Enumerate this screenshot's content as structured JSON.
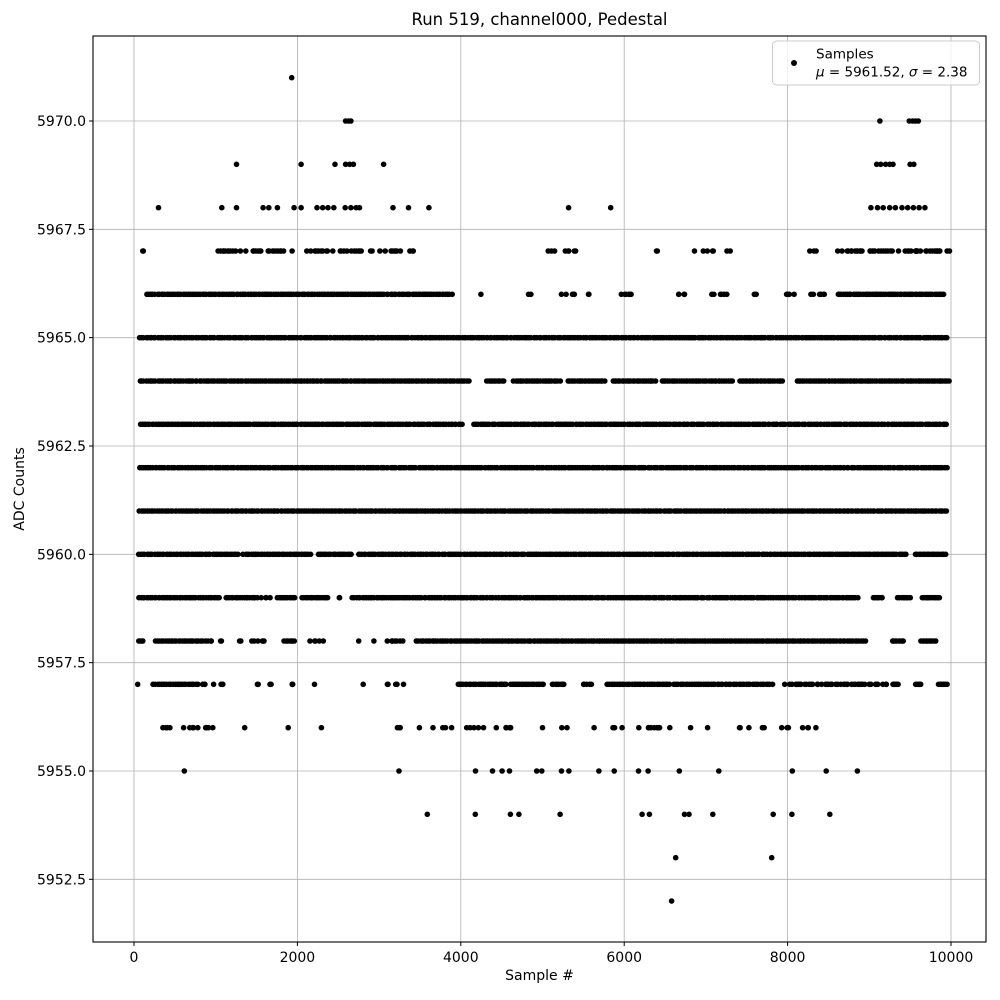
{
  "figure": {
    "background": "#ffffff"
  },
  "chart_data": {
    "type": "scatter",
    "title": "Run 519, channel000, Pedestal",
    "xlabel": "Sample #",
    "ylabel": "ADC Counts",
    "xlim": [
      -500,
      10430
    ],
    "ylim": [
      5951.0,
      5972.0
    ],
    "grid": true,
    "xticks": [
      0,
      2000,
      4000,
      6000,
      8000,
      10000
    ],
    "xtick_labels": [
      "0",
      "2000",
      "4000",
      "6000",
      "8000",
      "10000"
    ],
    "yticks": [
      5952.5,
      5955.0,
      5957.5,
      5960.0,
      5962.5,
      5965.0,
      5967.5,
      5970.0
    ],
    "ytick_labels": [
      "5952.5",
      "5955.0",
      "5957.5",
      "5960.0",
      "5962.5",
      "5965.0",
      "5967.5",
      "5970.0"
    ],
    "legend": {
      "location": "upper right",
      "label": "Samples",
      "stats": "μ = 5961.52, σ = 2.38"
    },
    "stats": {
      "mean": 5961.52,
      "sigma": 2.38
    },
    "colors": {
      "marker": "#000000",
      "grid": "#b0b0b0",
      "spine": "#000000",
      "legend_border": "#cccccc",
      "background": "#ffffff"
    },
    "levels": [
      {
        "adc": 5971,
        "points": [
          1930
        ]
      },
      {
        "adc": 5970,
        "points": [
          2590,
          2625,
          2655,
          9130,
          9490,
          9530,
          9565,
          9600
        ]
      },
      {
        "adc": 5969,
        "points": [
          1255,
          2045,
          2460,
          2590,
          2640,
          2685,
          3055,
          9090,
          9140,
          9200,
          9250,
          9290,
          9500,
          9545
        ]
      },
      {
        "adc": 5968,
        "points": [
          300,
          1075,
          1255,
          1580,
          1650,
          1755,
          1960,
          2045,
          2240,
          2310,
          2375,
          2445,
          2585,
          2655,
          2720,
          2760,
          3170,
          3360,
          3610,
          5320,
          5835,
          9020,
          9100,
          9170,
          9250,
          9320,
          9400,
          9470,
          9540,
          9610,
          9680
        ]
      },
      {
        "adc": 5967,
        "segments": [
          [
            90,
            130,
            2
          ],
          [
            1020,
            3560,
            62
          ],
          [
            5040,
            5430,
            8
          ],
          [
            6380,
            6410,
            2
          ],
          [
            6800,
            7300,
            7
          ],
          [
            8210,
            8400,
            3
          ],
          [
            8600,
            9990,
            48
          ]
        ]
      },
      {
        "adc": 5966,
        "segments": [
          [
            150,
            3900,
            170
          ],
          [
            4230,
            4260,
            1
          ],
          [
            4820,
            4860,
            2
          ],
          [
            5170,
            5400,
            5
          ],
          [
            5540,
            5580,
            2
          ],
          [
            5890,
            6130,
            6
          ],
          [
            6580,
            6740,
            4
          ],
          [
            6970,
            7300,
            6
          ],
          [
            7580,
            7620,
            2
          ],
          [
            7930,
            8100,
            4
          ],
          [
            8250,
            8480,
            6
          ],
          [
            8600,
            9930,
            82
          ]
        ]
      },
      {
        "adc": 5965,
        "segments": [
          [
            60,
            4150,
            300
          ],
          [
            4150,
            8300,
            185
          ],
          [
            8300,
            9960,
            105
          ]
        ]
      },
      {
        "adc": 5964,
        "segments": [
          [
            60,
            4110,
            520
          ],
          [
            4310,
            4530,
            18
          ],
          [
            4640,
            5220,
            50
          ],
          [
            5300,
            5770,
            40
          ],
          [
            5850,
            6390,
            45
          ],
          [
            6450,
            7330,
            60
          ],
          [
            7400,
            7950,
            45
          ],
          [
            8100,
            9990,
            192
          ]
        ]
      },
      {
        "adc": 5963,
        "segments": [
          [
            60,
            4030,
            620
          ],
          [
            4150,
            9960,
            770
          ]
        ]
      },
      {
        "adc": 5962,
        "segments": [
          [
            50,
            9960,
            1630
          ]
        ]
      },
      {
        "adc": 5961,
        "segments": [
          [
            50,
            9960,
            1625
          ]
        ]
      },
      {
        "adc": 5960,
        "segments": [
          [
            50,
            1280,
            185
          ],
          [
            1330,
            2170,
            125
          ],
          [
            2240,
            2670,
            65
          ],
          [
            2730,
            9470,
            920
          ],
          [
            9550,
            9950,
            65
          ]
        ]
      },
      {
        "adc": 5959,
        "segments": [
          [
            50,
            1055,
            170
          ],
          [
            1110,
            1450,
            16
          ],
          [
            1450,
            1670,
            7
          ],
          [
            1740,
            1980,
            11
          ],
          [
            2050,
            2380,
            15
          ],
          [
            2500,
            2540,
            2
          ],
          [
            2660,
            8870,
            660
          ],
          [
            9040,
            9170,
            16
          ],
          [
            9340,
            9510,
            20
          ],
          [
            9640,
            9870,
            26
          ]
        ]
      },
      {
        "adc": 5958,
        "segments": [
          [
            50,
            115,
            10
          ],
          [
            260,
            850,
            60
          ],
          [
            870,
            975,
            4
          ],
          [
            1060,
            1085,
            2
          ],
          [
            1290,
            1310,
            2
          ],
          [
            1440,
            1610,
            6
          ],
          [
            1830,
            1975,
            8
          ],
          [
            2150,
            2360,
            5
          ],
          [
            2740,
            2760,
            1
          ],
          [
            2920,
            2940,
            1
          ],
          [
            3090,
            3300,
            8
          ],
          [
            3440,
            8960,
            400
          ],
          [
            9270,
            9430,
            16
          ],
          [
            9620,
            9820,
            18
          ]
        ]
      },
      {
        "adc": 5957,
        "segments": [
          [
            40,
            60,
            1
          ],
          [
            230,
            790,
            40
          ],
          [
            800,
            875,
            3
          ],
          [
            950,
            1120,
            4
          ],
          [
            1500,
            1570,
            2
          ],
          [
            1620,
            1710,
            2
          ],
          [
            1830,
            1950,
            3
          ],
          [
            2190,
            2210,
            1
          ],
          [
            2800,
            2820,
            1
          ],
          [
            3090,
            3300,
            5
          ],
          [
            3950,
            4570,
            32
          ],
          [
            4600,
            5020,
            24
          ],
          [
            5110,
            5270,
            8
          ],
          [
            5480,
            5610,
            6
          ],
          [
            5780,
            6570,
            48
          ],
          [
            6600,
            7820,
            58
          ],
          [
            7890,
            9230,
            52
          ],
          [
            9280,
            9360,
            6
          ],
          [
            9560,
            9640,
            5
          ],
          [
            9840,
            9960,
            8
          ]
        ]
      },
      {
        "adc": 5956,
        "segments": [
          [
            340,
            1030,
            14
          ],
          [
            1340,
            1365,
            1
          ],
          [
            1860,
            1890,
            1
          ],
          [
            2280,
            2305,
            1
          ],
          [
            3220,
            3310,
            3
          ],
          [
            3490,
            3515,
            1
          ],
          [
            3630,
            3660,
            1
          ],
          [
            3770,
            3910,
            3
          ],
          [
            4050,
            4310,
            5
          ],
          [
            4390,
            4830,
            7
          ],
          [
            4990,
            5015,
            1
          ],
          [
            5230,
            5350,
            2
          ],
          [
            5610,
            5640,
            1
          ],
          [
            5760,
            5980,
            3
          ],
          [
            6170,
            6195,
            1
          ],
          [
            6280,
            6850,
            9
          ],
          [
            7010,
            7035,
            1
          ],
          [
            7360,
            7550,
            3
          ],
          [
            7680,
            7800,
            2
          ],
          [
            7850,
            8360,
            7
          ]
        ]
      },
      {
        "adc": 5955,
        "points": [
          616,
          3243,
          4180,
          4388,
          4506,
          4596,
          4929,
          4991,
          5233,
          5323,
          5690,
          5877,
          6175,
          6293,
          6674,
          7158,
          8058,
          8473,
          8854
        ]
      },
      {
        "adc": 5954,
        "points": [
          3590,
          4178,
          4607,
          4711,
          5216,
          6219,
          6309,
          6738,
          6793,
          7084,
          7824,
          8053,
          8516
        ]
      },
      {
        "adc": 5953,
        "points": [
          6630,
          7805
        ]
      },
      {
        "adc": 5952,
        "points": [
          6580
        ]
      }
    ]
  }
}
